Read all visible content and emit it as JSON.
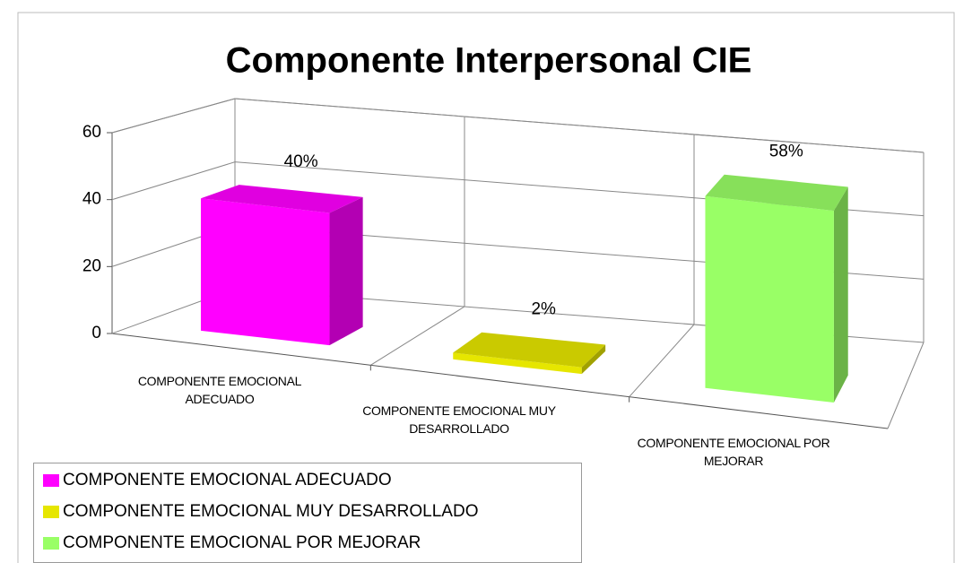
{
  "chart_data": {
    "type": "bar3d",
    "title": "Componente Interpersonal CIE",
    "categories": [
      "COMPONENTE EMOCIONAL ADECUADO",
      "COMPONENTE EMOCIONAL MUY DESARROLLADO",
      "COMPONENTE EMOCIONAL POR MEJORAR"
    ],
    "values": [
      40,
      2,
      58
    ],
    "value_labels": [
      "40%",
      "2%",
      "58%"
    ],
    "colors": [
      "#ff00ff",
      "#e6e600",
      "#99ff66"
    ],
    "ylim": [
      0,
      60
    ],
    "yticks": [
      0,
      20,
      40,
      60
    ],
    "grid": true,
    "legend": "bottom-left"
  }
}
